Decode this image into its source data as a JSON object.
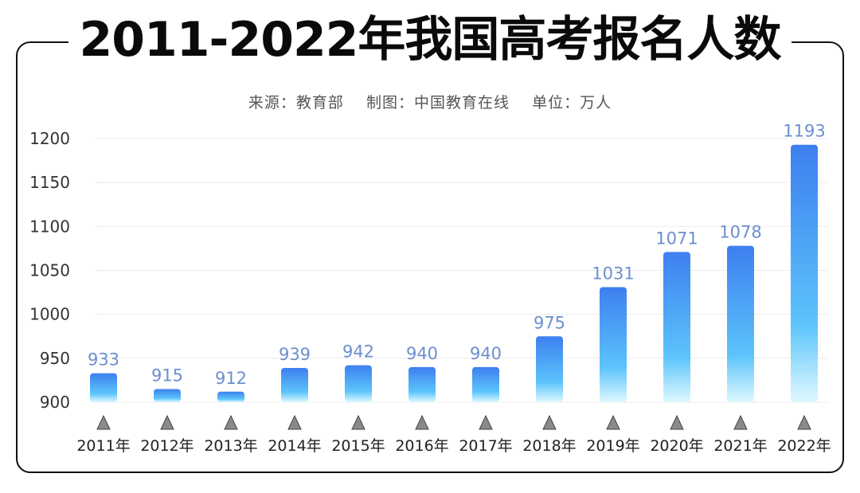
{
  "title": "2011-2022年我国高考报名人数",
  "subtitle": "来源：教育部    制图：中国教育在线    单位：万人",
  "colors": {
    "bar_top": "#3d7fef",
    "bar_bottom": "#7fe9ff",
    "label": "#6b8fcf",
    "marker": "#888888"
  },
  "chart_data": {
    "type": "bar",
    "title": "2011-2022年我国高考报名人数",
    "xlabel": "",
    "ylabel": "",
    "unit": "万人",
    "categories": [
      "2011年",
      "2012年",
      "2013年",
      "2014年",
      "2015年",
      "2016年",
      "2017年",
      "2018年",
      "2019年",
      "2020年",
      "2021年",
      "2022年"
    ],
    "values": [
      933,
      915,
      912,
      939,
      942,
      940,
      940,
      975,
      1031,
      1071,
      1078,
      1193
    ],
    "ylim": [
      900,
      1200
    ],
    "yticks": [
      900,
      950,
      1000,
      1050,
      1100,
      1150,
      1200
    ],
    "grid": true
  }
}
